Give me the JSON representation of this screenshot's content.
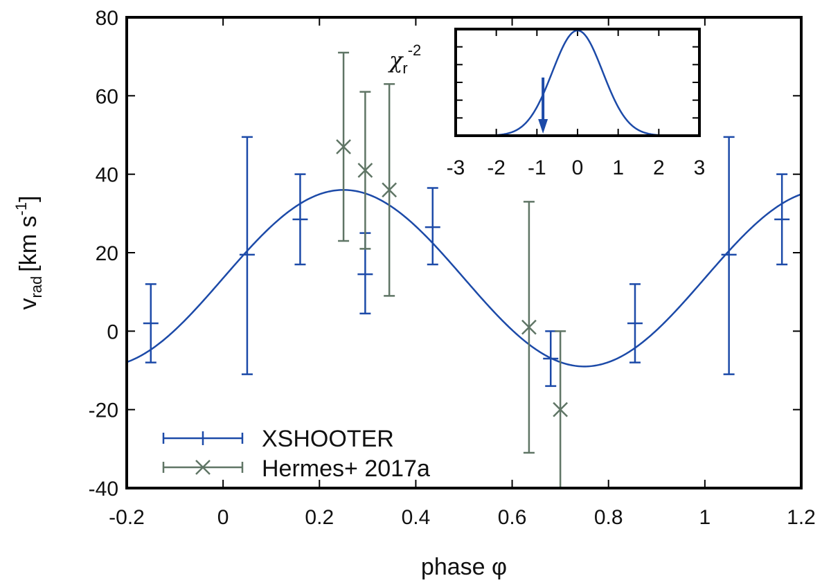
{
  "chart_data": [
    {
      "type": "scatter",
      "xlabel": "phase φ",
      "ylabel_main": "v",
      "ylabel_sub": "rad",
      "ylabel_unit": "[km s",
      "ylabel_unit_sup": "-1",
      "ylabel_unit_end": "]",
      "xlim": [
        -0.2,
        1.2
      ],
      "ylim": [
        -40,
        80
      ],
      "xticks": [
        "-0.2",
        "0",
        "0.2",
        "0.4",
        "0.6",
        "0.8",
        "1",
        "1.2"
      ],
      "yticks": [
        "-40",
        "-20",
        "0",
        "20",
        "40",
        "60",
        "80"
      ],
      "xtick_values": [
        -0.2,
        0,
        0.2,
        0.4,
        0.6,
        0.8,
        1.0,
        1.2
      ],
      "ytick_values": [
        -40,
        -20,
        0,
        20,
        40,
        60,
        80
      ],
      "legend_position": "bottom-left",
      "colors": {
        "xshooter": "#1c4aa8",
        "hermes": "#5f7565",
        "fit": "#1c4aa8"
      },
      "fit_curve": {
        "function": "sinusoid",
        "mean": 13.5,
        "amplitude": 22.5,
        "phase_of_max": 0.25
      },
      "series": [
        {
          "name": "XSHOOTER",
          "marker": "plus",
          "points": [
            {
              "x": -0.15,
              "y": 2,
              "err_low": -8,
              "err_high": 12
            },
            {
              "x": 0.05,
              "y": 19.5,
              "err_low": -11,
              "err_high": 49.5
            },
            {
              "x": 0.16,
              "y": 28.5,
              "err_low": 17,
              "err_high": 40
            },
            {
              "x": 0.295,
              "y": 14.5,
              "err_low": 4.5,
              "err_high": 25
            },
            {
              "x": 0.435,
              "y": 26.5,
              "err_low": 17,
              "err_high": 36.5
            },
            {
              "x": 0.68,
              "y": -7,
              "err_low": -14,
              "err_high": 0
            },
            {
              "x": 0.855,
              "y": 2,
              "err_low": -8,
              "err_high": 12
            },
            {
              "x": 1.05,
              "y": 19.5,
              "err_low": -11,
              "err_high": 49.5
            },
            {
              "x": 1.16,
              "y": 28.5,
              "err_low": 17,
              "err_high": 40
            }
          ]
        },
        {
          "name": "Hermes+ 2017a",
          "marker": "cross",
          "points": [
            {
              "x": 0.25,
              "y": 47,
              "err_low": 23,
              "err_high": 71
            },
            {
              "x": 0.295,
              "y": 41,
              "err_low": 21,
              "err_high": 61
            },
            {
              "x": 0.345,
              "y": 36,
              "err_low": 9,
              "err_high": 63
            },
            {
              "x": 0.635,
              "y": 1,
              "err_low": -31,
              "err_high": 33
            },
            {
              "x": 0.7,
              "y": -20,
              "err_low": -40,
              "err_high": 0
            }
          ]
        }
      ]
    },
    {
      "type": "line",
      "ylabel_symbol": "χ",
      "ylabel_sub": "r",
      "ylabel_sup": "-2",
      "xlim": [
        -3,
        3
      ],
      "xticks": [
        "-3",
        "-2",
        "-1",
        "0",
        "1",
        "2",
        "3"
      ],
      "xtick_values": [
        -3,
        -2,
        -1,
        0,
        1,
        2,
        3
      ],
      "curve": {
        "function": "gaussian",
        "center": 0,
        "sigma": 0.62
      },
      "arrow_x": -0.85,
      "color": "#1c4aa8"
    }
  ]
}
